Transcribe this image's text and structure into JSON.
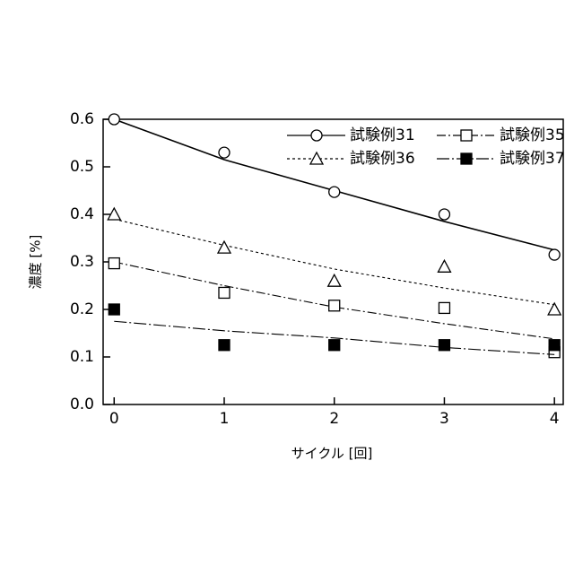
{
  "chart_data": {
    "type": "scatter",
    "x_label": "サイクル [回]",
    "y_label": "濃度 [%]",
    "x": [
      0,
      1,
      2,
      3,
      4
    ],
    "xlim": [
      -0.1,
      4.08
    ],
    "ylim": [
      0,
      0.6
    ],
    "xticks": [
      0,
      1,
      2,
      3,
      4
    ],
    "yticks": [
      {
        "value": 0,
        "label": "0.0"
      },
      0.1,
      0.2,
      0.3,
      0.4,
      0.5,
      0.6
    ],
    "series": [
      {
        "name": "試験例31",
        "color": "#000000",
        "marker": "circle",
        "line_style": "solid",
        "values": [
          0.6,
          0.53,
          0.447,
          0.4,
          0.315
        ],
        "fit": [
          0.6,
          0.515,
          0.45,
          0.385,
          0.325
        ]
      },
      {
        "name": "試験例35",
        "color": "#000000",
        "marker": "square",
        "line_style": "dashdot",
        "values": [
          0.297,
          0.235,
          0.208,
          0.203,
          0.11
        ],
        "fit": [
          0.3,
          0.25,
          0.205,
          0.17,
          0.138
        ]
      },
      {
        "name": "試験例36",
        "color": "#000000",
        "marker": "triangle",
        "line_style": "dotted",
        "values": [
          0.4,
          0.33,
          0.26,
          0.29,
          0.2
        ],
        "fit": [
          0.39,
          0.335,
          0.285,
          0.245,
          0.21
        ]
      },
      {
        "name": "試験例37",
        "color": "#000000",
        "marker": "filled-square",
        "line_style": "longdashdot",
        "values": [
          0.2,
          0.125,
          0.125,
          0.125,
          0.125
        ],
        "fit": [
          0.175,
          0.155,
          0.14,
          0.12,
          0.105
        ]
      }
    ]
  }
}
